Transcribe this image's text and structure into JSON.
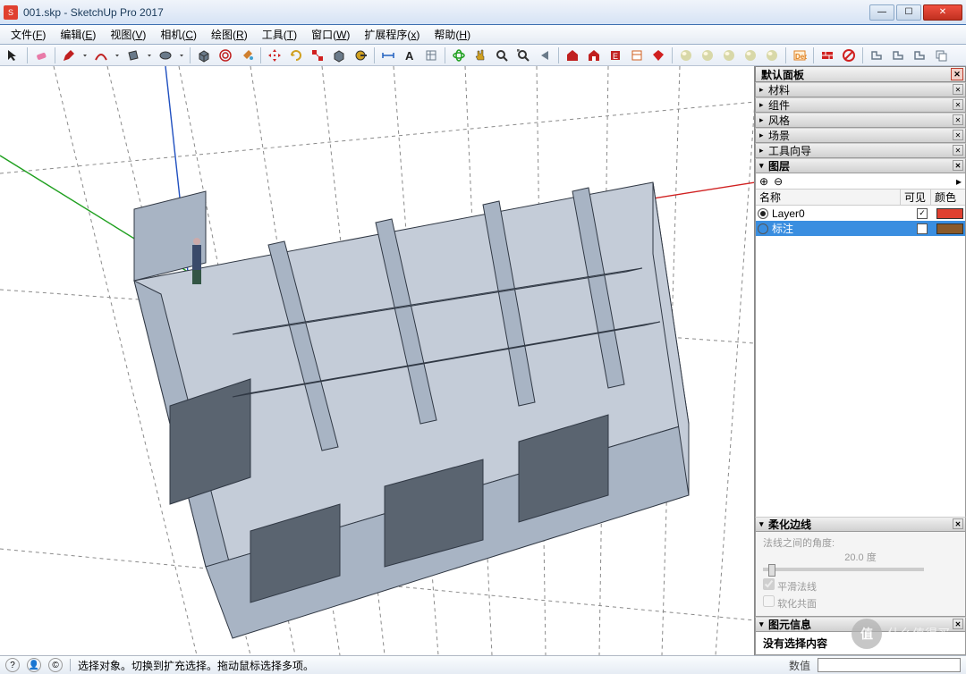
{
  "window": {
    "title": "001.skp - SketchUp Pro 2017",
    "btn_min": "—",
    "btn_max": "☐",
    "btn_close": "✕"
  },
  "menu": [
    {
      "label": "文件",
      "key": "F"
    },
    {
      "label": "编辑",
      "key": "E"
    },
    {
      "label": "视图",
      "key": "V"
    },
    {
      "label": "相机",
      "key": "C"
    },
    {
      "label": "绘图",
      "key": "R"
    },
    {
      "label": "工具",
      "key": "T"
    },
    {
      "label": "窗口",
      "key": "W"
    },
    {
      "label": "扩展程序",
      "key": "x"
    },
    {
      "label": "帮助",
      "key": "H"
    }
  ],
  "toolbar": [
    {
      "name": "select-tool",
      "fill": "#222",
      "svg": "cursor"
    },
    {
      "name": "eraser-tool",
      "fill": "#e87aa8",
      "svg": "eraser"
    },
    {
      "name": "pencil-tool",
      "fill": "#c02020",
      "svg": "pencil"
    },
    {
      "name": "dropdown-marker",
      "fill": "#444",
      "svg": "dd"
    },
    {
      "name": "arc-tool",
      "fill": "#c02020",
      "svg": "arc"
    },
    {
      "name": "dropdown-marker",
      "fill": "#444",
      "svg": "dd"
    },
    {
      "name": "rect-tool",
      "fill": "#6a7a8a",
      "svg": "rect"
    },
    {
      "name": "dropdown-marker",
      "fill": "#444",
      "svg": "dd"
    },
    {
      "name": "circle-tool",
      "fill": "#6a7a8a",
      "svg": "circle"
    },
    {
      "name": "dropdown-marker",
      "fill": "#444",
      "svg": "dd"
    },
    {
      "name": "pushpull-tool",
      "fill": "#6a7a8a",
      "svg": "box"
    },
    {
      "name": "offset-tool",
      "fill": "#c02020",
      "svg": "offset"
    },
    {
      "name": "paint-tool",
      "fill": "#d08030",
      "svg": "bucket"
    },
    {
      "name": "move-tool",
      "fill": "#d02020",
      "svg": "move"
    },
    {
      "name": "rotate-tool",
      "fill": "#d0a020",
      "svg": "rotate"
    },
    {
      "name": "scale-tool",
      "fill": "#d02020",
      "svg": "scale"
    },
    {
      "name": "followme-tool",
      "fill": "#6a7a8a",
      "svg": "follow"
    },
    {
      "name": "tape-tool",
      "fill": "#d0a020",
      "svg": "tape"
    },
    {
      "name": "dim-tool",
      "fill": "#2060c0",
      "svg": "dim"
    },
    {
      "name": "text-tool",
      "fill": "#222",
      "svg": "text"
    },
    {
      "name": "outliner-tool",
      "fill": "#6a7a8a",
      "svg": "outliner"
    },
    {
      "name": "orbit-tool",
      "fill": "#20a020",
      "svg": "orbit"
    },
    {
      "name": "pan-tool",
      "fill": "#d0a020",
      "svg": "pan"
    },
    {
      "name": "zoom-tool",
      "fill": "#6a7a8a",
      "svg": "zoom"
    },
    {
      "name": "zoomext-tool",
      "fill": "#6a7a8a",
      "svg": "zoomext"
    },
    {
      "name": "prev-tool",
      "fill": "#6a7a8a",
      "svg": "prev"
    },
    {
      "name": "warehouse-tool",
      "fill": "#c02020",
      "svg": "wh"
    },
    {
      "name": "3dwh-tool",
      "fill": "#c02020",
      "svg": "wh2"
    },
    {
      "name": "ext-tool",
      "fill": "#c02020",
      "svg": "ext"
    },
    {
      "name": "layout-tool",
      "fill": "#d06020",
      "svg": "layout"
    },
    {
      "name": "ruby-tool",
      "fill": "#d02020",
      "svg": "ruby"
    },
    {
      "name": "shadow1",
      "fill": "#d8d8a8",
      "svg": "sphere"
    },
    {
      "name": "shadow2",
      "fill": "#d8d8a8",
      "svg": "sphere"
    },
    {
      "name": "shadow3",
      "fill": "#d8d8a8",
      "svg": "sphere"
    },
    {
      "name": "shadow4",
      "fill": "#d8d8a8",
      "svg": "sphere"
    },
    {
      "name": "shadow5",
      "fill": "#d8d8a8",
      "svg": "sphere"
    },
    {
      "name": "dec-tool",
      "fill": "#e08020",
      "svg": "dec"
    },
    {
      "name": "brick-tool",
      "fill": "#d02020",
      "svg": "brick"
    },
    {
      "name": "noentry-tool",
      "fill": "#d02020",
      "svg": "noentry"
    },
    {
      "name": "more1",
      "fill": "#6a7a8a",
      "svg": "more"
    },
    {
      "name": "more2",
      "fill": "#6a7a8a",
      "svg": "more"
    },
    {
      "name": "more3",
      "fill": "#6a7a8a",
      "svg": "more"
    },
    {
      "name": "stack-tool",
      "fill": "#6a7a8a",
      "svg": "stack"
    }
  ],
  "panels": {
    "main_header": "默认面板",
    "groups": [
      {
        "label": "材料"
      },
      {
        "label": "组件"
      },
      {
        "label": "风格"
      },
      {
        "label": "场景"
      },
      {
        "label": "工具向导"
      }
    ],
    "layers": {
      "header": "图层",
      "add_icon": "⊕",
      "remove_icon": "⊖",
      "menu_icon": "▸",
      "col_name": "名称",
      "col_visible": "可见",
      "col_color": "颜色",
      "rows": [
        {
          "name": "Layer0",
          "active": true,
          "visible": true,
          "color": "#e04030",
          "selected": false
        },
        {
          "name": "标注",
          "active": false,
          "visible": false,
          "color": "#8a5a2a",
          "selected": true
        }
      ]
    },
    "soften": {
      "header": "柔化边线",
      "angle_label": "法线之间的角度:",
      "angle_value": "20.0",
      "angle_unit": "度",
      "smooth_label": "平滑法线",
      "coplanar_label": "软化共面"
    },
    "entity": {
      "header": "图元信息",
      "empty": "没有选择内容"
    }
  },
  "status": {
    "hint": "选择对象。切换到扩充选择。拖动鼠标选择多项。",
    "measure_label": "数值"
  },
  "viewport": {
    "background": "#ffffff",
    "axis_x": "#d02020",
    "axis_y": "#20a020",
    "axis_z": "#2050c0",
    "wall_fill": "#a8b4c4",
    "wall_fill_light": "#c4ccd8",
    "wall_stroke": "#303844",
    "guide_color": "#8a8a8a"
  },
  "watermark": {
    "badge": "值",
    "text": "什么值得买"
  }
}
